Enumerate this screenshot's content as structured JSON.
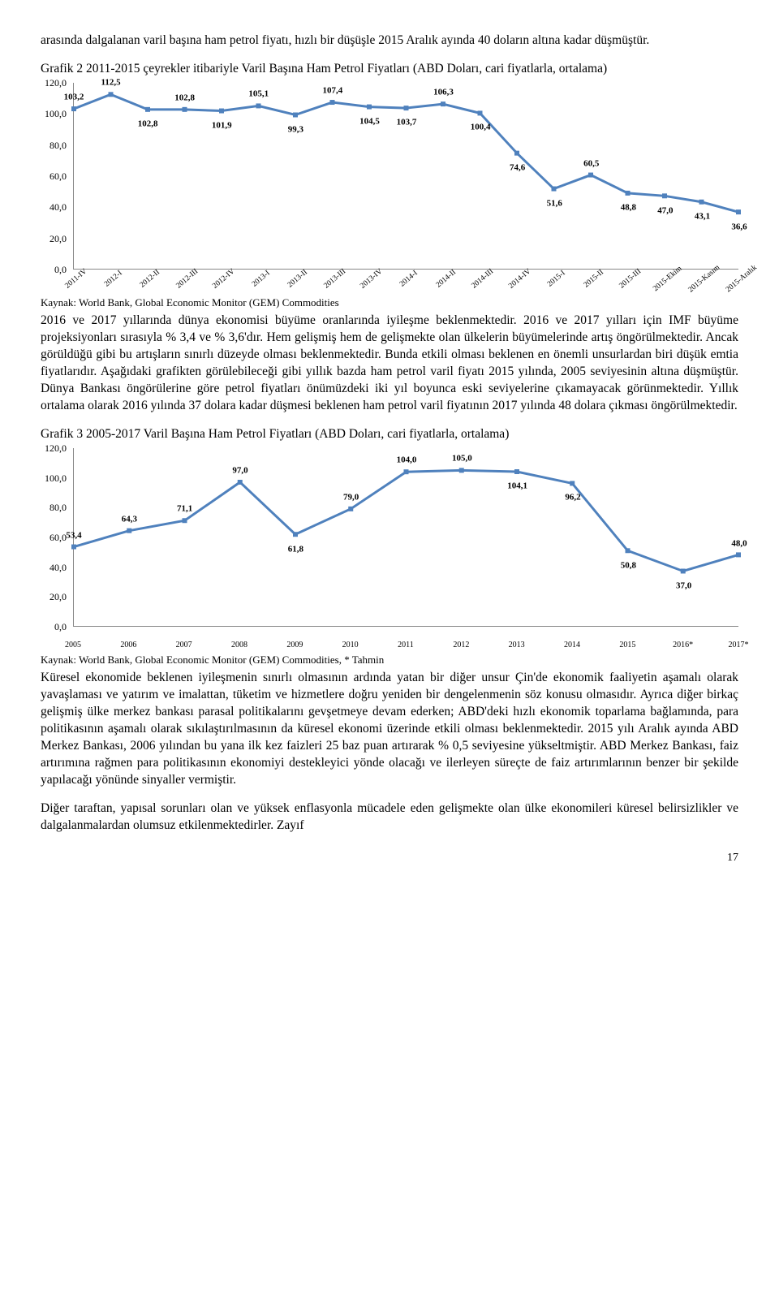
{
  "intro_para": "arasında dalgalanan varil başına ham petrol fiyatı, hızlı bir düşüşle 2015 Aralık ayında 40 doların altına kadar düşmüştür.",
  "chart2": {
    "title": "Grafik 2 2011-2015 çeyrekler itibariyle Varil Başına Ham Petrol Fiyatları (ABD Doları, cari fiyatlarla, ortalama)",
    "type": "line",
    "ylim": [
      0,
      120
    ],
    "ytick_step": 20,
    "categories": [
      "2011-IV",
      "2012-I",
      "2012-II",
      "2012-III",
      "2012-IV",
      "2013-I",
      "2013-II",
      "2013-III",
      "2013-IV",
      "2014-I",
      "2014-II",
      "2014-III",
      "2014-IV",
      "2015-I",
      "2015-II",
      "2015-III",
      "2015-Ekim",
      "2015-Kasım",
      "2015-Aralık"
    ],
    "values": [
      103.2,
      112.5,
      102.8,
      102.8,
      101.9,
      105.1,
      99.3,
      107.4,
      104.5,
      103.7,
      106.3,
      100.4,
      74.6,
      51.6,
      60.5,
      48.8,
      47.0,
      43.1,
      36.6
    ],
    "line_color": "#4f81bd",
    "marker_color": "#4f81bd",
    "label_fontsize": 11,
    "background_color": "#ffffff",
    "source": "Kaynak: World Bank, Global Economic Monitor (GEM) Commodities"
  },
  "mid_para": "2016 ve 2017 yıllarında dünya ekonomisi büyüme oranlarında iyileşme beklenmektedir. 2016 ve 2017 yılları için IMF büyüme projeksiyonları sırasıyla % 3,4 ve % 3,6'dır. Hem gelişmiş hem de gelişmekte olan ülkelerin büyümelerinde artış öngörülmektedir. Ancak görüldüğü gibi bu artışların sınırlı düzeyde olması beklenmektedir. Bunda etkili olması beklenen en önemli unsurlardan biri düşük emtia fiyatlarıdır. Aşağıdaki grafikten görülebileceği gibi yıllık bazda ham petrol varil fiyatı 2015 yılında, 2005 seviyesinin altına düşmüştür. Dünya Bankası öngörülerine göre petrol fiyatları önümüzdeki iki yıl boyunca eski seviyelerine çıkamayacak görünmektedir. Yıllık ortalama olarak 2016 yılında 37 dolara kadar düşmesi beklenen ham petrol varil fiyatının 2017 yılında 48 dolara çıkması öngörülmektedir.",
  "chart3": {
    "title": "Grafik 3 2005-2017 Varil Başına Ham Petrol Fiyatları (ABD Doları, cari fiyatlarla, ortalama)",
    "type": "line",
    "ylim": [
      0,
      120
    ],
    "ytick_step": 20,
    "categories": [
      "2005",
      "2006",
      "2007",
      "2008",
      "2009",
      "2010",
      "2011",
      "2012",
      "2013",
      "2014",
      "2015",
      "2016*",
      "2017*"
    ],
    "values": [
      53.4,
      64.3,
      71.1,
      97.0,
      61.8,
      79.0,
      104.0,
      105.0,
      104.1,
      96.2,
      50.8,
      37.0,
      48.0
    ],
    "line_color": "#4f81bd",
    "marker_color": "#4f81bd",
    "label_fontsize": 11,
    "background_color": "#ffffff",
    "source": "Kaynak: World Bank, Global Economic Monitor (GEM) Commodities, * Tahmin"
  },
  "para_after_chart3": "Küresel ekonomide beklenen iyileşmenin sınırlı olmasının ardında yatan bir diğer unsur Çin'de ekonomik faaliyetin aşamalı olarak yavaşlaması ve yatırım ve imalattan, tüketim ve hizmetlere doğru yeniden bir dengelenmenin söz konusu olmasıdır. Ayrıca diğer birkaç gelişmiş ülke merkez bankası parasal politikalarını gevşetmeye devam ederken; ABD'deki hızlı ekonomik toparlama bağlamında, para politikasının aşamalı olarak sıkılaştırılmasının da küresel ekonomi üzerinde etkili olması beklenmektedir. 2015 yılı Aralık ayında ABD Merkez Bankası, 2006 yılından bu yana ilk kez faizleri 25 baz puan artırarak % 0,5 seviyesine yükseltmiştir. ABD Merkez Bankası, faiz artırımına rağmen para politikasının ekonomiyi destekleyici yönde olacağı ve ilerleyen süreçte de faiz artırımlarının benzer bir şekilde yapılacağı yönünde sinyaller vermiştir.",
  "last_para": "Diğer taraftan, yapısal sorunları olan ve yüksek enflasyonla mücadele eden gelişmekte olan ülke ekonomileri küresel belirsizlikler ve dalgalanmalardan olumsuz etkilenmektedirler. Zayıf",
  "pagenum": "17",
  "y_ticks_fmt": [
    "0,0",
    "20,0",
    "40,0",
    "60,0",
    "80,0",
    "100,0",
    "120,0"
  ]
}
